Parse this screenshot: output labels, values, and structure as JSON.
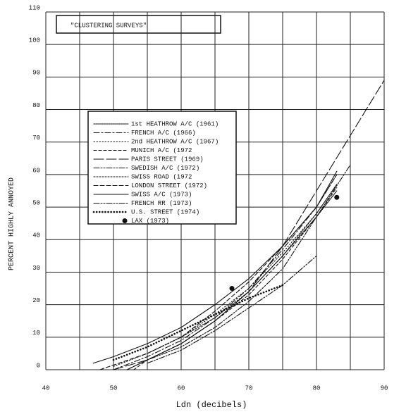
{
  "chart_data": {
    "type": "line",
    "title": "\"CLUSTERING SURVEYS\"",
    "xlabel": "Ldn (decibels)",
    "ylabel": "PERCENT HIGHLY ANNOYED",
    "xlim": [
      40,
      90
    ],
    "ylim": [
      0,
      110
    ],
    "xticks": [
      40,
      50,
      60,
      70,
      80,
      90
    ],
    "xminor": [
      45,
      55,
      65,
      75,
      85
    ],
    "yticks": [
      0,
      10,
      20,
      30,
      40,
      50,
      60,
      70,
      80,
      90,
      100,
      110
    ],
    "grid": true,
    "series": [
      {
        "name": "1st HEATHROW A/C (1961)",
        "color": "#111",
        "style": "wavy",
        "x": [
          52,
          55,
          60,
          65,
          70,
          75,
          80,
          83
        ],
        "values": [
          0,
          3,
          8,
          15,
          24,
          35,
          47,
          55
        ]
      },
      {
        "name": "FRENCH A/C (1966)",
        "color": "#111",
        "style": "dashdot",
        "x": [
          50,
          55,
          60,
          65,
          70,
          75,
          80,
          83
        ],
        "values": [
          0,
          4,
          9,
          16,
          25,
          37,
          50,
          60
        ]
      },
      {
        "name": "2nd HEATHROW A/C (1967)",
        "color": "#111",
        "style": "dotted",
        "x": [
          50,
          55,
          60,
          65,
          70,
          75,
          80,
          83
        ],
        "values": [
          1,
          5,
          10,
          17,
          25,
          36,
          48,
          57
        ]
      },
      {
        "name": "MUNICH A/C (1972",
        "color": "#111",
        "style": "shortdash",
        "x": [
          53,
          55,
          60,
          65,
          70,
          75,
          80,
          83
        ],
        "values": [
          0,
          3,
          8,
          15,
          23,
          34,
          47,
          56
        ]
      },
      {
        "name": "PARIS STREET (1969)",
        "color": "#111",
        "style": "longdash",
        "x": [
          50,
          55,
          60,
          65,
          70,
          75,
          80,
          85,
          90
        ],
        "values": [
          0,
          3,
          8,
          15,
          24,
          38,
          55,
          72,
          89
        ]
      },
      {
        "name": "SWEDISH A/C (1972)",
        "color": "#111",
        "style": "dashdotdot",
        "x": [
          52,
          55,
          60,
          65,
          70,
          75,
          80,
          85
        ],
        "values": [
          0,
          3,
          7,
          13,
          21,
          31,
          47,
          63
        ]
      },
      {
        "name": "SWISS ROAD (1972",
        "color": "#111",
        "style": "cross",
        "x": [
          55,
          60,
          65,
          70,
          75,
          80,
          83
        ],
        "values": [
          5,
          10,
          16,
          24,
          35,
          48,
          57
        ]
      },
      {
        "name": "LONDON STREET (1972)",
        "color": "#111",
        "style": "dash",
        "x": [
          48,
          55,
          60,
          65,
          70,
          75,
          80,
          83
        ],
        "values": [
          0,
          5,
          10,
          18,
          27,
          38,
          50,
          60
        ]
      },
      {
        "name": "SWISS A/C (1973)",
        "color": "#111",
        "style": "solid",
        "x": [
          47,
          50,
          55,
          60,
          65,
          70,
          75,
          80,
          83
        ],
        "values": [
          2,
          4,
          8,
          13,
          20,
          28,
          38,
          50,
          61
        ]
      },
      {
        "name": "FRENCH RR (1973)",
        "color": "#111",
        "style": "dashdotdot",
        "x": [
          55,
          60,
          65,
          70,
          75,
          80
        ],
        "values": [
          2,
          6,
          12,
          19,
          26,
          35
        ]
      },
      {
        "name": "U.S. STREET (1974)",
        "color": "#111",
        "style": "circles",
        "x": [
          50,
          55,
          60,
          65,
          70,
          75
        ],
        "values": [
          3,
          7,
          12,
          17,
          22,
          26
        ]
      },
      {
        "name": "LAX (1973)",
        "color": "#111",
        "style": "points",
        "x": [
          67.5,
          83
        ],
        "values": [
          25,
          53
        ]
      }
    ]
  }
}
